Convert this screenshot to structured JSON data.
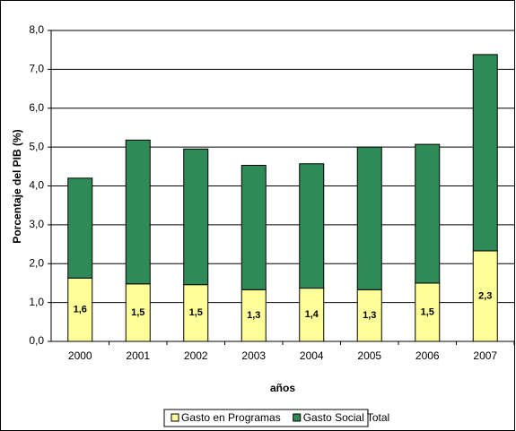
{
  "chart_data": {
    "type": "stacked_bar",
    "categories": [
      "2000",
      "2001",
      "2002",
      "2003",
      "2004",
      "2005",
      "2006",
      "2007"
    ],
    "series": [
      {
        "name": "Gasto en Programas",
        "color": "#ffff99",
        "values": [
          1.63,
          1.48,
          1.46,
          1.33,
          1.37,
          1.33,
          1.5,
          2.33
        ],
        "value_labels": [
          "1,6",
          "1,5",
          "1,5",
          "1,3",
          "1,4",
          "1,3",
          "1,5",
          "2,3"
        ]
      },
      {
        "name": "Gasto Social Total",
        "color": "#2e8b57",
        "values": [
          2.57,
          3.7,
          3.49,
          3.2,
          3.2,
          3.67,
          3.57,
          5.05
        ]
      }
    ],
    "ylim": [
      0,
      8
    ],
    "yticks": [
      {
        "value": 0,
        "label": "0,0"
      },
      {
        "value": 1,
        "label": "1,0"
      },
      {
        "value": 2,
        "label": "2,0"
      },
      {
        "value": 3,
        "label": "3,0"
      },
      {
        "value": 4,
        "label": "4,0"
      },
      {
        "value": 5,
        "label": "5,0"
      },
      {
        "value": 6,
        "label": "6,0"
      },
      {
        "value": 7,
        "label": "7,0"
      },
      {
        "value": 8,
        "label": "8,0"
      }
    ],
    "y_label": "Porcentaje del PIB (%)",
    "x_label": "años",
    "grid": true,
    "legend": "bottom"
  }
}
